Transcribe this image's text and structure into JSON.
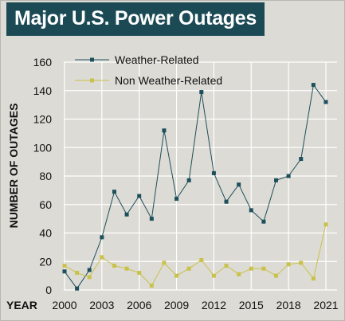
{
  "title": "Major U.S. Power Outages",
  "colors": {
    "background": "#dddbd5",
    "title_bg": "#1b4a55",
    "weather": "#1d4f5c",
    "non_weather": "#c9c24a",
    "grid": "#ffffff"
  },
  "chart_data": {
    "type": "line",
    "title": "Major U.S. Power Outages",
    "xlabel": "YEAR",
    "ylabel": "NUMBER OF OUTAGES",
    "ylim": [
      0,
      160
    ],
    "yticks": [
      0,
      20,
      40,
      60,
      80,
      100,
      120,
      140,
      160
    ],
    "xticks": [
      2000,
      2003,
      2006,
      2009,
      2012,
      2015,
      2018,
      2021
    ],
    "xlim": [
      2000,
      2021
    ],
    "grid": true,
    "legend": "top-left",
    "x": [
      2000,
      2001,
      2002,
      2003,
      2004,
      2005,
      2006,
      2007,
      2008,
      2009,
      2010,
      2011,
      2012,
      2013,
      2014,
      2015,
      2016,
      2017,
      2018,
      2019,
      2020,
      2021
    ],
    "series": [
      {
        "name": "Weather-Related",
        "color": "#1d4f5c",
        "values": [
          13,
          1,
          14,
          37,
          69,
          53,
          66,
          50,
          112,
          64,
          77,
          139,
          82,
          62,
          74,
          56,
          48,
          77,
          80,
          92,
          144,
          132
        ]
      },
      {
        "name": "Non Weather-Related",
        "color": "#c9c24a",
        "values": [
          17,
          12,
          9,
          23,
          17,
          15,
          12,
          3,
          19,
          10,
          15,
          21,
          10,
          17,
          11,
          15,
          15,
          10,
          18,
          19,
          8,
          46
        ]
      }
    ]
  }
}
